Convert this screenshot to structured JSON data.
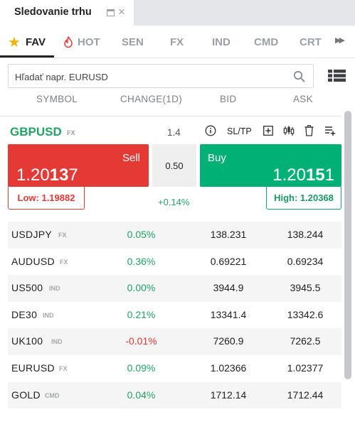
{
  "window_tab": {
    "title": "Sledovanie trhu"
  },
  "categories": [
    {
      "label": "FAV",
      "icon": "star-icon",
      "active": true
    },
    {
      "label": "HOT",
      "icon": "fire-icon",
      "active": false
    },
    {
      "label": "SEN",
      "active": false
    },
    {
      "label": "FX",
      "active": false
    },
    {
      "label": "IND",
      "active": false
    },
    {
      "label": "CMD",
      "active": false
    },
    {
      "label": "CRT",
      "active": false
    }
  ],
  "search": {
    "placeholder": "Hľadať napr. EURUSD",
    "value": ""
  },
  "columns": {
    "symbol": "SYMBOL",
    "change": "CHANGE(1D)",
    "bid": "BID",
    "ask": "ASK"
  },
  "selected": {
    "symbol": "GBPUSD",
    "type": "FX",
    "spread_value": "1.4",
    "sltp_label": "SL/TP",
    "sell_label": "Sell",
    "sell_price_pre": "1.20",
    "sell_price_big": "13",
    "sell_price_post": "7",
    "spread_box": "0.50",
    "buy_label": "Buy",
    "buy_price_pre": "1.20",
    "buy_price_big": "15",
    "buy_price_post": "1",
    "low": "Low: 1.19882",
    "high": "High: 1.20368",
    "change": "+0.14%"
  },
  "rows": [
    {
      "symbol": "USDJPY",
      "type": "FX",
      "change": "0.05%",
      "bid": "138.231",
      "ask": "138.244"
    },
    {
      "symbol": "AUDUSD",
      "type": "FX",
      "change": "0.36%",
      "bid": "0.69221",
      "ask": "0.69234"
    },
    {
      "symbol": "US500",
      "type": "IND",
      "change": "0.00%",
      "bid": "3944.9",
      "ask": "3945.5"
    },
    {
      "symbol": "DE30",
      "type": "IND",
      "change": "0.21%",
      "bid": "13341.4",
      "ask": "13342.6"
    },
    {
      "symbol": "UK100",
      "type": "IND",
      "change": "-0.01%",
      "bid": "7260.9",
      "ask": "7262.5"
    },
    {
      "symbol": "EURUSD",
      "type": "FX",
      "change": "0.09%",
      "bid": "1.02366",
      "ask": "1.02377"
    },
    {
      "symbol": "GOLD",
      "type": "CMD",
      "change": "0.04%",
      "bid": "1712.14",
      "ask": "1712.44"
    }
  ],
  "colors": {
    "sell": "#e53935",
    "buy": "#00b074",
    "positive": "#21a366",
    "negative": "#e53935"
  }
}
